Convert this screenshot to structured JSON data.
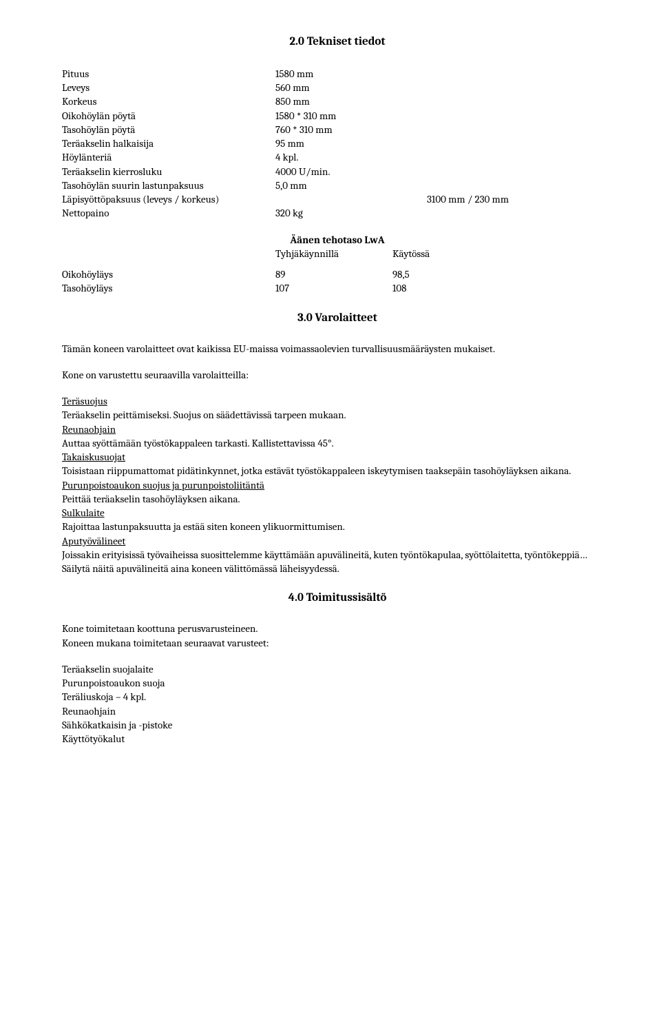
{
  "section2": {
    "heading": "2.0  Tekniset tiedot",
    "specs": [
      {
        "label": "Pituus",
        "value": "1580 mm"
      },
      {
        "label": "Leveys",
        "value": "560 mm"
      },
      {
        "label": "Korkeus",
        "value": "850 mm"
      },
      {
        "label": "Oikohöylän pöytä",
        "value": "1580 * 310 mm"
      },
      {
        "label": "Tasohöylän pöytä",
        "value": "760 * 310 mm"
      },
      {
        "label": "Teräakselin halkaisija",
        "value": "95 mm"
      },
      {
        "label": "Höylänteriä",
        "value": "4 kpl."
      },
      {
        "label": "Teräakselin kierrosluku",
        "value": "4000 U/min."
      },
      {
        "label": "Tasohöylän suurin lastunpaksuus",
        "value": "5,0 mm"
      },
      {
        "label": "Läpisyöttöpaksuus (leveys / korkeus)",
        "value": "",
        "extra": "3100 mm / 230 mm"
      },
      {
        "label": "Nettopaino",
        "value": "320 kg"
      }
    ],
    "sound": {
      "title": "Äänen tehotaso LwA",
      "col1": "Tyhjäkäynnillä",
      "col2": "Käytössä",
      "rows": [
        {
          "label": "Oikohöyläys",
          "v1": "89",
          "v2": "98,5"
        },
        {
          "label": "Tasohöyläys",
          "v1": "107",
          "v2": "108"
        }
      ]
    }
  },
  "section3": {
    "heading": "3.0  Varolaitteet",
    "intro": "Tämän koneen varolaitteet ovat kaikissa EU-maissa voimassaolevien turvallisuusmääräysten mukaiset.",
    "equipped": "Kone on varustettu seuraavilla varolaitteilla:",
    "items": [
      {
        "title": "Teräsuojus",
        "text": "Teräakselin peittämiseksi. Suojus on säädettävissä tarpeen mukaan."
      },
      {
        "title": "Reunaohjain",
        "text": "Auttaa syöttämään työstökappaleen tarkasti. Kallistettavissa 45°."
      },
      {
        "title": "Takaiskusuojat",
        "text": "Toisistaan riippumattomat pidätinkynnet, jotka estävät työstökappaleen iskeytymisen taaksepäin tasohöyläyksen aikana."
      },
      {
        "title": "Purunpoistoaukon suojus ja purunpoistoliitäntä",
        "text": "Peittää teräakselin tasohöyläyksen aikana."
      },
      {
        "title": "Sulkulaite",
        "text": "Rajoittaa lastunpaksuutta ja estää siten koneen ylikuormittumisen."
      },
      {
        "title": "Aputyövälineet",
        "text": "Joissakin erityisissä työvaiheissa suosittelemme käyttämään apuvälineitä, kuten työntökapulaa, syöttölaitetta, työntökeppiä…",
        "text2": "Säilytä näitä apuvälineitä aina koneen välittömässä läheisyydessä."
      }
    ]
  },
  "section4": {
    "heading": "4.0  Toimitussisältö",
    "line1": "Kone toimitetaan koottuna perusvarusteineen.",
    "line2": "Koneen mukana toimitetaan seuraavat varusteet:",
    "items": [
      "Teräakselin suojalaite",
      "Purunpoistoaukon suoja",
      "Teräliuskoja – 4 kpl.",
      "Reunaohjain",
      "Sähkökatkaisin ja -pistoke",
      "Käyttötyökalut"
    ]
  }
}
